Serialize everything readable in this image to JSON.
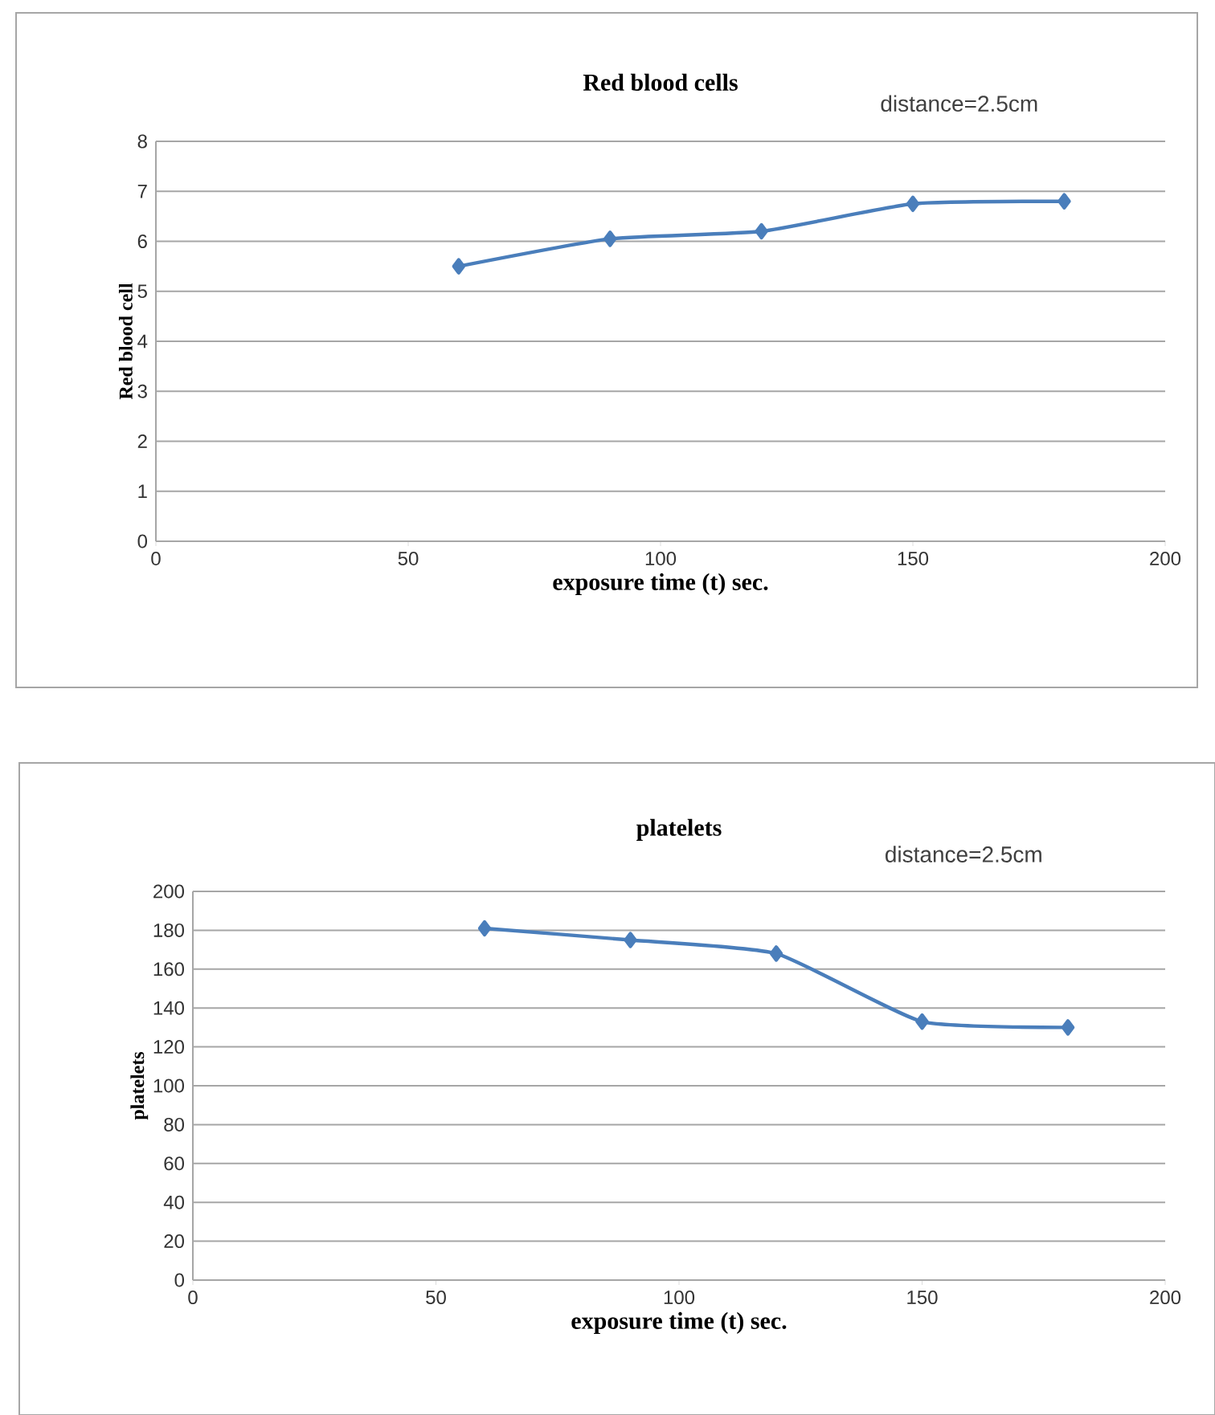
{
  "chart_data": [
    {
      "type": "line",
      "title": "Red blood cells",
      "xlabel": "exposure time (t) sec.",
      "ylabel": "Red blood cell",
      "annotations": [
        "distance=2.5cm"
      ],
      "x": [
        60,
        90,
        120,
        150,
        180
      ],
      "series": [
        {
          "color": "#4a7ebb",
          "values": [
            5.5,
            6.05,
            6.2,
            6.75,
            6.8
          ]
        }
      ],
      "xlim": [
        0,
        200
      ],
      "xticks": [
        0,
        50,
        100,
        150,
        200
      ],
      "ylim": [
        0,
        8
      ],
      "yticks": [
        0,
        1,
        2,
        3,
        4,
        5,
        6,
        7,
        8
      ],
      "grid": "y",
      "marker": "diamond",
      "line_style": "solid"
    },
    {
      "type": "line",
      "title": "platelets",
      "xlabel": "exposure time (t) sec.",
      "ylabel": "platelets",
      "annotations": [
        "distance=2.5cm"
      ],
      "x": [
        60,
        90,
        120,
        150,
        180
      ],
      "series": [
        {
          "color": "#4a7ebb",
          "values": [
            181,
            175,
            168,
            133,
            130
          ]
        }
      ],
      "xlim": [
        0,
        200
      ],
      "xticks": [
        0,
        50,
        100,
        150,
        200
      ],
      "ylim": [
        0,
        200
      ],
      "yticks": [
        0,
        20,
        40,
        60,
        80,
        100,
        120,
        140,
        160,
        180,
        200
      ],
      "grid": "y",
      "marker": "diamond",
      "line_style": "solid"
    }
  ]
}
